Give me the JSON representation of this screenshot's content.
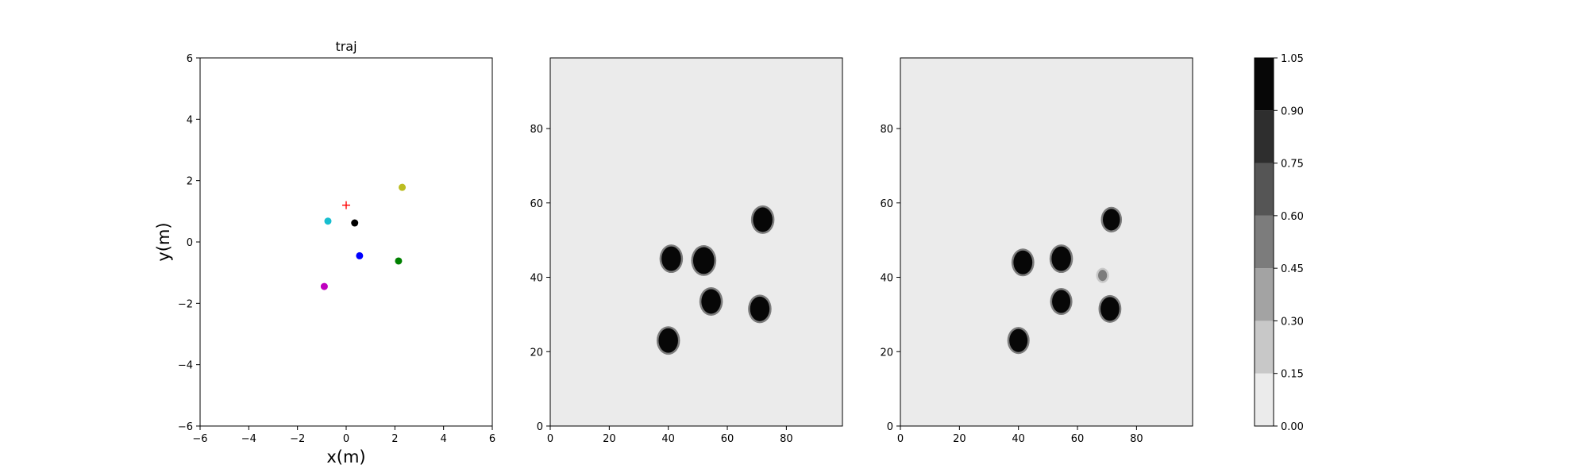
{
  "chart_data": [
    {
      "type": "scatter",
      "title": "traj",
      "xlabel": "x(m)",
      "ylabel": "y(m)",
      "xlim": [
        -6,
        6
      ],
      "ylim": [
        -6,
        6
      ],
      "xticks": [
        -6,
        -4,
        -2,
        0,
        2,
        4,
        6
      ],
      "yticks": [
        -6,
        -4,
        -2,
        0,
        2,
        4,
        6
      ],
      "grid": false,
      "points": [
        {
          "x": 0.0,
          "y": 1.2,
          "marker": "plus",
          "color": "#ff0000"
        },
        {
          "x": -0.75,
          "y": 0.68,
          "marker": "dot",
          "color": "#17becf"
        },
        {
          "x": 0.35,
          "y": 0.62,
          "marker": "dot",
          "color": "#000000"
        },
        {
          "x": 2.3,
          "y": 1.78,
          "marker": "dot",
          "color": "#bcbd22"
        },
        {
          "x": 0.55,
          "y": -0.45,
          "marker": "dot",
          "color": "#0000ff"
        },
        {
          "x": 2.15,
          "y": -0.62,
          "marker": "dot",
          "color": "#008000"
        },
        {
          "x": -0.9,
          "y": -1.45,
          "marker": "dot",
          "color": "#bf00bf"
        }
      ]
    },
    {
      "type": "heatmap",
      "xlim": [
        0,
        99
      ],
      "ylim": [
        0,
        99
      ],
      "xticks": [
        0,
        20,
        40,
        60,
        80
      ],
      "yticks": [
        0,
        20,
        40,
        60,
        80
      ],
      "background_value": 0.05,
      "blobs": [
        {
          "x": 41,
          "y": 45,
          "r": 3.3,
          "value": 1.0
        },
        {
          "x": 52,
          "y": 44.5,
          "r": 3.6,
          "value": 1.0
        },
        {
          "x": 72,
          "y": 55.5,
          "r": 3.3,
          "value": 1.0
        },
        {
          "x": 54.5,
          "y": 33.5,
          "r": 3.3,
          "value": 1.0
        },
        {
          "x": 71,
          "y": 31.5,
          "r": 3.3,
          "value": 1.0
        },
        {
          "x": 40,
          "y": 23,
          "r": 3.3,
          "value": 1.0
        }
      ]
    },
    {
      "type": "heatmap",
      "xlim": [
        0,
        99
      ],
      "ylim": [
        0,
        99
      ],
      "xticks": [
        0,
        20,
        40,
        60,
        80
      ],
      "yticks": [
        0,
        20,
        40,
        60,
        80
      ],
      "background_value": 0.05,
      "blobs": [
        {
          "x": 41.5,
          "y": 44,
          "r": 3.2,
          "value": 0.95
        },
        {
          "x": 54.5,
          "y": 45,
          "r": 3.3,
          "value": 0.95
        },
        {
          "x": 71.5,
          "y": 55.5,
          "r": 2.9,
          "value": 0.95
        },
        {
          "x": 54.5,
          "y": 33.5,
          "r": 3.1,
          "value": 0.95
        },
        {
          "x": 71,
          "y": 31.5,
          "r": 3.2,
          "value": 0.95
        },
        {
          "x": 40,
          "y": 23,
          "r": 3.1,
          "value": 0.95
        },
        {
          "x": 68.5,
          "y": 40.5,
          "r": 1.5,
          "value": 0.45
        }
      ]
    }
  ],
  "colorbar": {
    "levels": [
      0.0,
      0.15,
      0.3,
      0.45,
      0.6,
      0.75,
      0.9,
      1.05
    ],
    "tick_labels": [
      "0.00",
      "0.15",
      "0.30",
      "0.45",
      "0.60",
      "0.75",
      "0.90",
      "1.05"
    ],
    "colors": [
      "#ebebeb",
      "#c8c8c8",
      "#a3a3a3",
      "#7c7c7c",
      "#555555",
      "#2e2e2e",
      "#070707"
    ]
  }
}
